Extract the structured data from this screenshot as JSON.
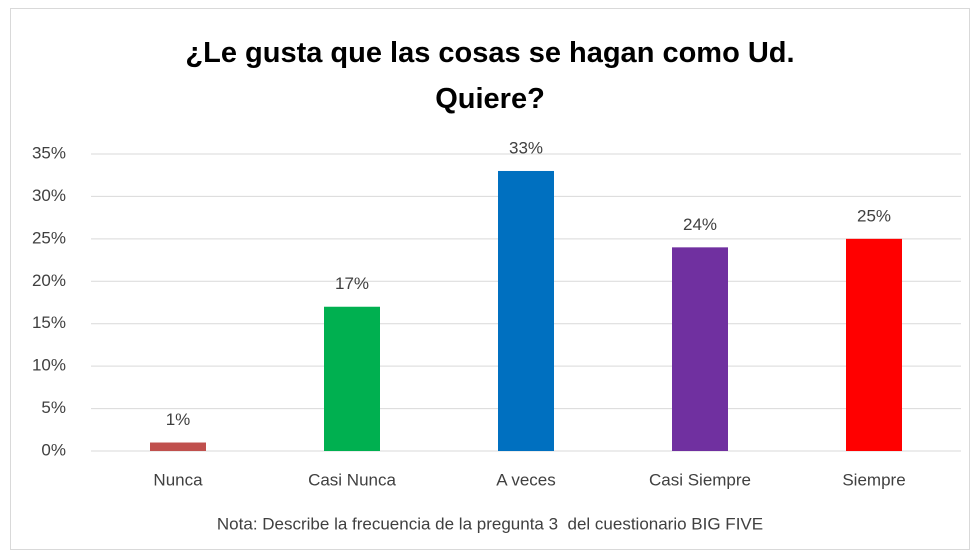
{
  "chart_data": {
    "type": "bar",
    "title": "¿Le gusta que las cosas se hagan como Ud. Quiere?",
    "categories": [
      "Nunca",
      "Casi Nunca",
      "A veces",
      "Casi Siempre",
      "Siempre"
    ],
    "values": [
      1,
      17,
      33,
      24,
      25
    ],
    "value_labels": [
      "1%",
      "17%",
      "33%",
      "24%",
      "25%"
    ],
    "colors": [
      "#c0504d",
      "#00b050",
      "#0070c0",
      "#7030a0",
      "#ff0000"
    ],
    "ylim": [
      0,
      35
    ],
    "yticks": [
      {
        "value": 0,
        "label": "0%"
      },
      {
        "value": 5,
        "label": "5%"
      },
      {
        "value": 10,
        "label": "10%"
      },
      {
        "value": 15,
        "label": "15%"
      },
      {
        "value": 20,
        "label": "20%"
      },
      {
        "value": 25,
        "label": "25%"
      },
      {
        "value": 30,
        "label": "30%"
      },
      {
        "value": 35,
        "label": "35%"
      }
    ],
    "grid": true,
    "note": "Nota: Describe la frecuencia de la pregunta 3  del cuestionario BIG FIVE"
  }
}
